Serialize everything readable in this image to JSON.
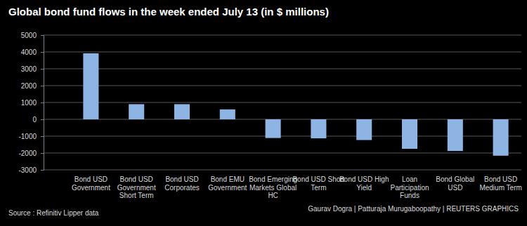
{
  "chart_data": {
    "type": "bar",
    "title": "Global bond fund flows in the week ended July 13 (in $ millions)",
    "categories": [
      "Bond USD Government",
      "Bond USD Government Short Term",
      "Bond USD Corporates",
      "Bond EMU Government",
      "Bond Emerging Markets Global HC",
      "Bond USD Short Term",
      "Bond USD High Yield",
      "Loan Participation Funds",
      "Bond Global USD",
      "Bond USD Medium Term"
    ],
    "values": [
      3920,
      900,
      900,
      590,
      -1110,
      -1130,
      -1230,
      -1750,
      -1880,
      -2160
    ],
    "color": "#8db4e2",
    "ylim": [
      -3000,
      5000
    ],
    "yticks": [
      -3000,
      -2000,
      -1000,
      0,
      1000,
      2000,
      3000,
      4000,
      5000
    ],
    "grid": true,
    "source": "Source : Refinitiv Lipper data",
    "credit": "Gaurav Dogra | Patturaja Murugaboopathy | REUTERS GRAPHICS"
  }
}
